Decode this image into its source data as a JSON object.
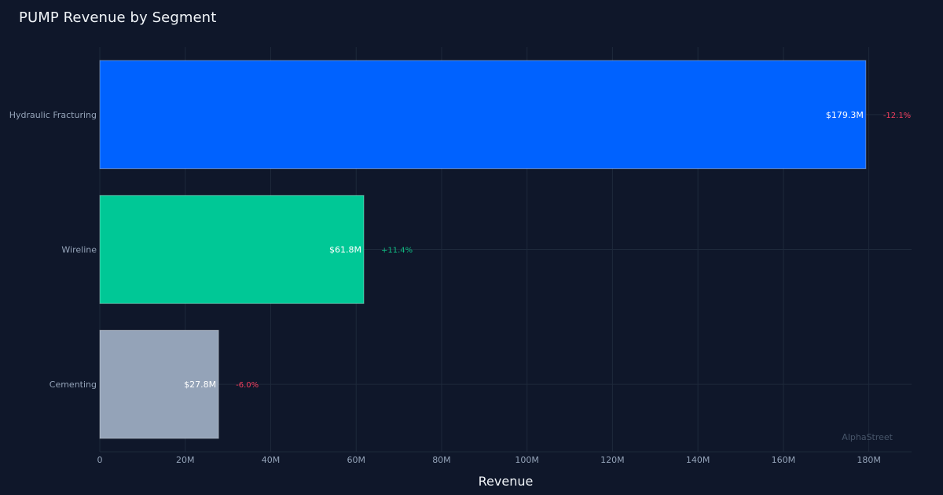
{
  "chart_data": {
    "type": "bar",
    "orientation": "horizontal",
    "title": "PUMP Revenue by Segment",
    "xlabel": "Revenue",
    "ylabel": "",
    "xlim": [
      0,
      190000000
    ],
    "x_ticks": [
      {
        "value": 0,
        "label": "0"
      },
      {
        "value": 20000000,
        "label": "20M"
      },
      {
        "value": 40000000,
        "label": "40M"
      },
      {
        "value": 60000000,
        "label": "60M"
      },
      {
        "value": 80000000,
        "label": "80M"
      },
      {
        "value": 100000000,
        "label": "100M"
      },
      {
        "value": 120000000,
        "label": "120M"
      },
      {
        "value": 140000000,
        "label": "140M"
      },
      {
        "value": 160000000,
        "label": "160M"
      },
      {
        "value": 180000000,
        "label": "180M"
      }
    ],
    "grid": true,
    "categories": [
      "Hydraulic Fracturing",
      "Wireline",
      "Cementing"
    ],
    "values": [
      179300000,
      61800000,
      27800000
    ],
    "value_labels": [
      "$179.3M",
      "$61.8M",
      "$27.8M"
    ],
    "changes": [
      "-12.1%",
      "+11.4%",
      "-6.0%"
    ],
    "bar_colors": [
      "#0062ff",
      "#00c896",
      "#94a3b8"
    ],
    "change_colors": {
      "positive": "#10b981",
      "negative": "#f43f5e"
    },
    "watermark": "AlphaStreet"
  },
  "colors": {
    "background": "#0f172a",
    "grid": "#1e293b",
    "text_muted": "#94a3b8",
    "text": "#f1f5f9"
  }
}
